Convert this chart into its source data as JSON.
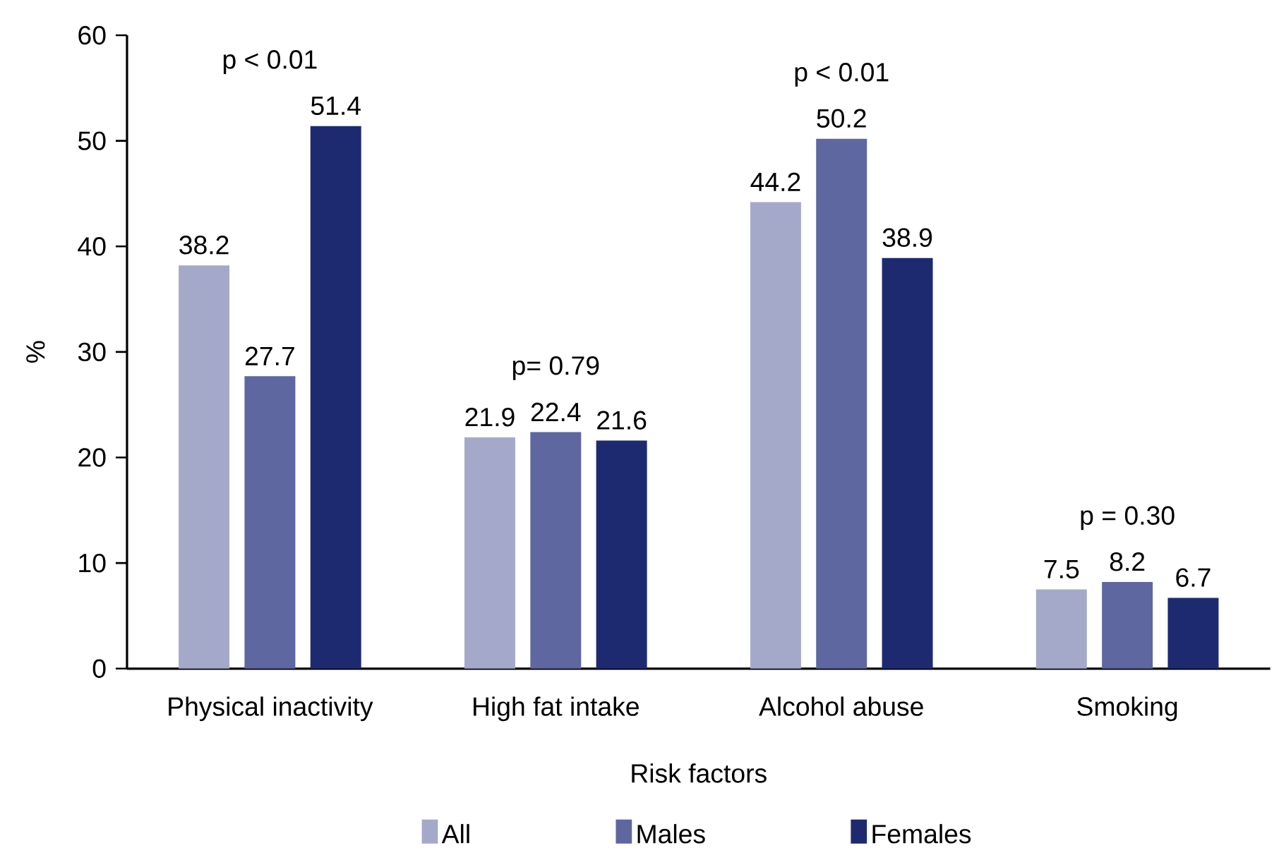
{
  "chart_data": {
    "type": "bar",
    "xlabel": "Risk factors",
    "ylabel": "%",
    "categories": [
      "Physical inactivity",
      "High fat intake",
      "Alcohol abuse",
      "Smoking"
    ],
    "series": [
      {
        "name": "All",
        "color": "#a5a9c9",
        "values": [
          38.2,
          21.9,
          44.2,
          7.5
        ]
      },
      {
        "name": "Males",
        "color": "#5f67a0",
        "values": [
          27.7,
          22.4,
          50.2,
          8.2
        ]
      },
      {
        "name": "Females",
        "color": "#1e2a70",
        "values": [
          51.4,
          21.6,
          38.9,
          6.7
        ]
      }
    ],
    "ylim": [
      0,
      60
    ],
    "yticks": [
      0,
      10,
      20,
      30,
      40,
      50,
      60
    ],
    "grid": false,
    "legend": "bottom",
    "data_labels": true,
    "annotations": [
      "p < 0.01",
      "p= 0.79",
      "p < 0.01",
      "p = 0.30"
    ]
  }
}
